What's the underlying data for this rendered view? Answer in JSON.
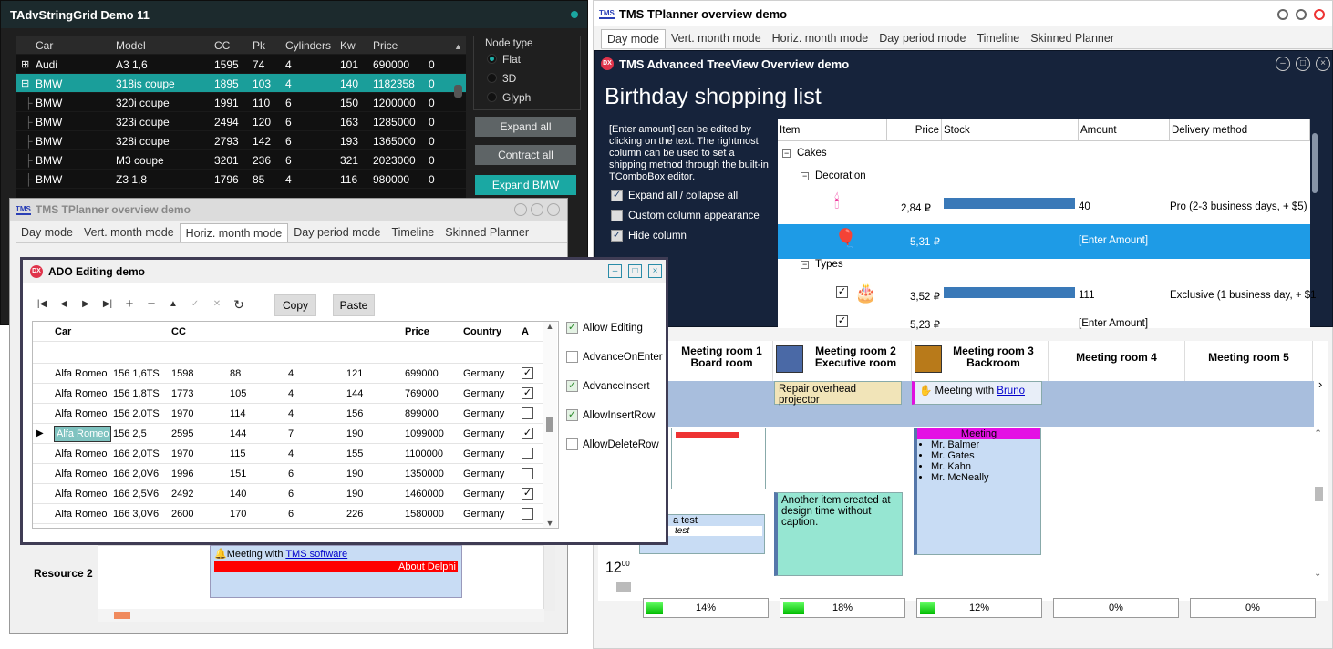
{
  "grid_window": {
    "title": "TAdvStringGrid Demo 11",
    "columns": [
      "Car",
      "Model",
      "CC",
      "Pk",
      "Cylinders",
      "Kw",
      "Price"
    ],
    "rows": [
      {
        "car": "Audi",
        "model": "A3 1,6",
        "cc": "1595",
        "pk": "74",
        "cyl": "4",
        "kw": "101",
        "price": "690000",
        "x": "0",
        "exp": "+"
      },
      {
        "car": "BMW",
        "model": "318is coupe",
        "cc": "1895",
        "pk": "103",
        "cyl": "4",
        "kw": "140",
        "price": "1182358",
        "x": "0",
        "exp": "−"
      },
      {
        "car": "BMW",
        "model": "320i coupe",
        "cc": "1991",
        "pk": "110",
        "cyl": "6",
        "kw": "150",
        "price": "1200000",
        "x": "0"
      },
      {
        "car": "BMW",
        "model": "323i coupe",
        "cc": "2494",
        "pk": "120",
        "cyl": "6",
        "kw": "163",
        "price": "1285000",
        "x": "0"
      },
      {
        "car": "BMW",
        "model": "328i coupe",
        "cc": "2793",
        "pk": "142",
        "cyl": "6",
        "kw": "193",
        "price": "1365000",
        "x": "0"
      },
      {
        "car": "BMW",
        "model": "M3 coupe",
        "cc": "3201",
        "pk": "236",
        "cyl": "6",
        "kw": "321",
        "price": "2023000",
        "x": "0"
      },
      {
        "car": "BMW",
        "model": "Z3 1,8",
        "cc": "1796",
        "pk": "85",
        "cyl": "4",
        "kw": "116",
        "price": "980000",
        "x": "0"
      }
    ],
    "node_type_label": "Node type",
    "node_types": [
      "Flat",
      "3D",
      "Glyph"
    ],
    "expand_all": "Expand all",
    "contract_all": "Contract all",
    "expand_bmw": "Expand BMW"
  },
  "planner_right": {
    "title": "TMS TPlanner overview demo",
    "logo": "TMS",
    "tabs": [
      "Day mode",
      "Vert. month mode",
      "Horiz. month mode",
      "Day period mode",
      "Timeline",
      "Skinned Planner"
    ],
    "rooms": [
      {
        "line1": "Meeting room 1",
        "line2": "Board room"
      },
      {
        "line1": "Meeting room 2",
        "line2": "Executive room"
      },
      {
        "line1": "Meeting room 3",
        "line2": "Backroom"
      },
      {
        "line1": "Meeting room 4",
        "line2": ""
      },
      {
        "line1": "Meeting room 5",
        "line2": ""
      }
    ],
    "item_repair": "Repair overhead projector",
    "item_meeting_prefix": "Meeting with ",
    "item_meeting_link": "Bruno",
    "meeting_header": "Meeting",
    "attendees": [
      "Mr. Balmer",
      "Mr. Gates",
      "Mr. Kahn",
      "Mr. McNeally"
    ],
    "another_item": "Another item created at design time without caption.",
    "test_label": "a test",
    "test_text": "test",
    "time_label": "12",
    "time_min": "00",
    "progress": [
      {
        "label": "14%",
        "value": 0.14
      },
      {
        "label": "18%",
        "value": 0.18
      },
      {
        "label": "12%",
        "value": 0.12
      },
      {
        "label": "0%",
        "value": 0
      },
      {
        "label": "0%",
        "value": 0
      }
    ]
  },
  "treeview": {
    "title": "TMS Advanced TreeView Overview demo",
    "heading": "Birthday shopping list",
    "description": "[Enter amount] can be edited by clicking on the text. The rightmost column can be used to set a shipping method through the built-in TComboBox editor.",
    "checks": [
      {
        "label": "Expand all / collapse all",
        "checked": true
      },
      {
        "label": "Custom column appearance",
        "checked": false
      },
      {
        "label": "Hide column",
        "checked": true
      }
    ],
    "columns": [
      "Item",
      "Price",
      "Stock",
      "Amount",
      "Delivery method"
    ],
    "cakes": "Cakes",
    "decoration": "Decoration",
    "types": "Types",
    "rows": [
      {
        "price": "2,84 ₽",
        "stock": 0.87,
        "amount": "40",
        "delivery": "Pro (2-3 business days, + $5)"
      },
      {
        "price": "5,31 ₽",
        "stock": 0,
        "amount": "[Enter Amount]",
        "delivery": ""
      },
      {
        "price": "3,52 ₽",
        "stock": 0.87,
        "amount": "111",
        "delivery": "Exclusive (1 business day, + $1"
      },
      {
        "price": "5,23 ₽",
        "stock": 0,
        "amount": "[Enter Amount]",
        "delivery": ""
      }
    ]
  },
  "planner_left": {
    "title": "TMS TPlanner overview demo",
    "tabs": [
      "Day mode",
      "Vert. month mode",
      "Horiz. month mode",
      "Day period mode",
      "Timeline",
      "Skinned Planner"
    ],
    "resource2": "Resource 2",
    "meeting_prefix": "Meeting with ",
    "meeting_link": "TMS software",
    "about": "About Delphi"
  },
  "ado": {
    "title": "ADO Editing demo",
    "copy": "Copy",
    "paste": "Paste",
    "columns": [
      "Car",
      "CC",
      "Price",
      "Country",
      "A"
    ],
    "rows": [
      {
        "car": "Alfa Romeo",
        "model": "156 1,6TS",
        "cc": "1598",
        "pk": "88",
        "cyl": "4",
        "kw": "121",
        "price": "699000",
        "country": "Germany",
        "a": true
      },
      {
        "car": "Alfa Romeo",
        "model": "156 1,8TS",
        "cc": "1773",
        "pk": "105",
        "cyl": "4",
        "kw": "144",
        "price": "769000",
        "country": "Germany",
        "a": true
      },
      {
        "car": "Alfa Romeo",
        "model": "156 2,0TS",
        "cc": "1970",
        "pk": "114",
        "cyl": "4",
        "kw": "156",
        "price": "899000",
        "country": "Germany",
        "a": false
      },
      {
        "car": "Alfa Romeo",
        "model": "156 2,5",
        "cc": "2595",
        "pk": "144",
        "cyl": "7",
        "kw": "190",
        "price": "1099000",
        "country": "Germany",
        "a": true
      },
      {
        "car": "Alfa Romeo",
        "model": "166 2,0TS",
        "cc": "1970",
        "pk": "115",
        "cyl": "4",
        "kw": "155",
        "price": "1100000",
        "country": "Germany",
        "a": false
      },
      {
        "car": "Alfa Romeo",
        "model": "166 2,0V6",
        "cc": "1996",
        "pk": "151",
        "cyl": "6",
        "kw": "190",
        "price": "1350000",
        "country": "Germany",
        "a": false
      },
      {
        "car": "Alfa Romeo",
        "model": "166 2,5V6",
        "cc": "2492",
        "pk": "140",
        "cyl": "6",
        "kw": "190",
        "price": "1460000",
        "country": "Germany",
        "a": true
      },
      {
        "car": "Alfa Romeo",
        "model": "166 3,0V6",
        "cc": "2600",
        "pk": "170",
        "cyl": "6",
        "kw": "226",
        "price": "1580000",
        "country": "Germany",
        "a": false
      }
    ],
    "options": [
      {
        "label": "Allow Editing",
        "checked": true
      },
      {
        "label": "AdvanceOnEnter",
        "checked": false
      },
      {
        "label": "AdvanceInsert",
        "checked": true
      },
      {
        "label": "AllowInsertRow",
        "checked": true
      },
      {
        "label": "AllowDeleteRow",
        "checked": false
      }
    ]
  }
}
